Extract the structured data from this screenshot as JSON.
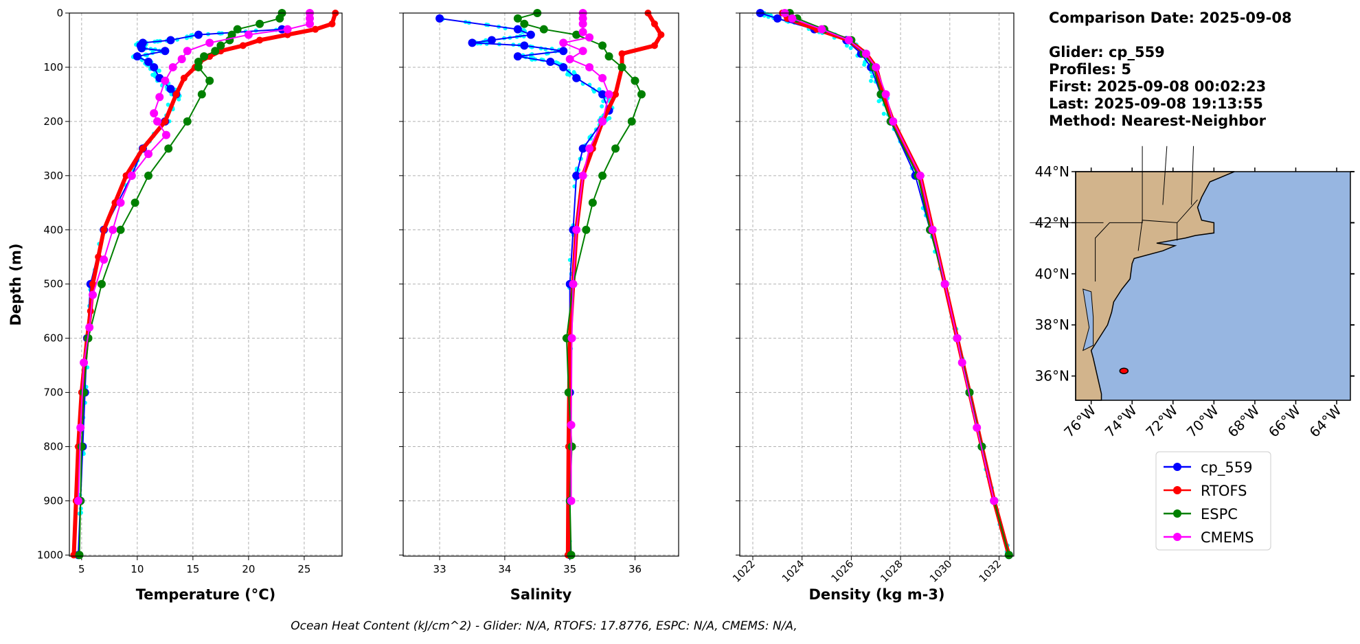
{
  "info": {
    "comparison_date": "Comparison Date: 2025-09-08",
    "glider": "Glider: cp_559",
    "profiles": "Profiles: 5",
    "first": "First: 2025-09-08 00:02:23",
    "last": "Last: 2025-09-08 19:13:55",
    "method": "Method: Nearest-Neighbor"
  },
  "footer": "Ocean Heat Content (kJ/cm^2) - Glider: N/A,  RTOFS: 17.8776,  ESPC: N/A,  CMEMS: N/A,",
  "colors": {
    "cp_559": "#0000ff",
    "RTOFS": "#ff0000",
    "ESPC": "#008000",
    "CMEMS": "#ff00ff",
    "raw": "#00ffff",
    "land": "#d2b48c",
    "ocean": "#97b6e1"
  },
  "chart_data": [
    {
      "type": "line",
      "key": "temp",
      "xlabel": "Temperature (°C)",
      "ylabel": "Depth (m)",
      "xlim": [
        3.9,
        28.4
      ],
      "ylim": [
        1002,
        0
      ],
      "xticks": [
        5,
        10,
        15,
        20,
        25
      ],
      "yticks": [
        0,
        100,
        200,
        300,
        400,
        500,
        600,
        700,
        800,
        900,
        1000
      ],
      "grid": true,
      "series": [
        {
          "name": "cp_559",
          "depth": [
            30,
            40,
            50,
            55,
            60,
            65,
            70,
            80,
            90,
            100,
            120,
            140,
            150,
            200,
            250,
            300,
            400,
            500,
            600,
            700,
            800,
            900,
            1000
          ],
          "values": [
            23,
            15.5,
            13,
            10.5,
            10.3,
            10.4,
            12.5,
            10,
            11,
            11.5,
            12,
            13,
            13.5,
            12.5,
            10.5,
            9.5,
            7,
            5.8,
            5.5,
            5.3,
            5.1,
            4.9,
            4.7
          ]
        },
        {
          "name": "RTOFS",
          "depth": [
            0,
            20,
            30,
            40,
            50,
            60,
            70,
            80,
            90,
            100,
            120,
            150,
            200,
            250,
            300,
            350,
            400,
            450,
            500,
            550,
            600,
            700,
            800,
            900,
            1000
          ],
          "values": [
            27.8,
            27.5,
            26,
            23.5,
            21,
            19.5,
            17.5,
            16.5,
            15.6,
            15.2,
            14.2,
            13.5,
            12.5,
            10.5,
            9,
            8,
            7,
            6.5,
            6,
            5.8,
            5.5,
            5,
            4.7,
            4.5,
            4.3
          ]
        },
        {
          "name": "ESPC",
          "depth": [
            0,
            10,
            20,
            30,
            40,
            50,
            60,
            70,
            80,
            90,
            100,
            125,
            150,
            200,
            250,
            300,
            350,
            400,
            500,
            600,
            700,
            800,
            900,
            1000
          ],
          "values": [
            23,
            22.8,
            21,
            19,
            18.5,
            18.3,
            17.5,
            17,
            16,
            15.5,
            15.5,
            16.5,
            15.8,
            14.5,
            12.8,
            11,
            9.8,
            8.5,
            6.8,
            5.6,
            5.2,
            5,
            4.9,
            4.8
          ]
        },
        {
          "name": "CMEMS",
          "depth": [
            0,
            10,
            20,
            30,
            40,
            55,
            70,
            85,
            100,
            125,
            155,
            185,
            200,
            225,
            260,
            300,
            350,
            400,
            455,
            520,
            580,
            645,
            765,
            900
          ],
          "values": [
            25.5,
            25.5,
            25.5,
            23.5,
            20,
            16.5,
            14.5,
            14,
            13.2,
            12.5,
            12,
            11.5,
            11.8,
            12.6,
            11,
            9.5,
            8.5,
            7.8,
            7,
            6,
            5.7,
            5.2,
            4.9,
            4.7
          ]
        }
      ]
    },
    {
      "type": "line",
      "key": "sal",
      "xlabel": "Salinity",
      "ylabel": "",
      "xlim": [
        32.44,
        36.67
      ],
      "ylim": [
        1002,
        0
      ],
      "xticks": [
        33,
        34,
        35,
        36
      ],
      "yticks": [
        0,
        100,
        200,
        300,
        400,
        500,
        600,
        700,
        800,
        900,
        1000
      ],
      "grid": true,
      "series": [
        {
          "name": "cp_559",
          "depth": [
            10,
            30,
            40,
            50,
            55,
            60,
            70,
            80,
            90,
            100,
            120,
            150,
            180,
            200,
            250,
            300,
            400,
            500,
            700,
            1000
          ],
          "values": [
            33,
            34.2,
            34.4,
            33.8,
            33.5,
            34.3,
            34.9,
            34.2,
            34.7,
            34.9,
            35.1,
            35.5,
            35.6,
            35.5,
            35.2,
            35.1,
            35.05,
            35,
            35,
            35
          ]
        },
        {
          "name": "RTOFS",
          "depth": [
            0,
            20,
            40,
            60,
            75,
            100,
            150,
            200,
            250,
            300,
            400,
            500,
            600,
            800,
            1000
          ],
          "values": [
            36.2,
            36.3,
            36.4,
            36.3,
            35.8,
            35.8,
            35.7,
            35.5,
            35.35,
            35.2,
            35.1,
            35.05,
            35,
            34.98,
            34.97
          ]
        },
        {
          "name": "ESPC",
          "depth": [
            0,
            10,
            20,
            30,
            40,
            60,
            80,
            100,
            125,
            150,
            200,
            250,
            300,
            350,
            400,
            500,
            600,
            700,
            800,
            900,
            1000
          ],
          "values": [
            34.5,
            34.2,
            34.3,
            34.6,
            35.1,
            35.5,
            35.6,
            35.8,
            36,
            36.1,
            35.95,
            35.7,
            35.5,
            35.35,
            35.25,
            35.05,
            34.95,
            34.98,
            35.03,
            35,
            35.02
          ]
        },
        {
          "name": "CMEMS",
          "depth": [
            0,
            10,
            20,
            35,
            45,
            55,
            70,
            85,
            100,
            120,
            150,
            200,
            250,
            300,
            400,
            500,
            600,
            760,
            900
          ],
          "values": [
            35.2,
            35.2,
            35.2,
            35.2,
            35.3,
            34.9,
            35.2,
            35,
            35.3,
            35.5,
            35.6,
            35.5,
            35.3,
            35.2,
            35.1,
            35.05,
            35.03,
            35.02,
            35.02
          ]
        }
      ]
    },
    {
      "type": "line",
      "key": "dens",
      "xlabel": "Density (kg m-3)",
      "ylabel": "",
      "xlim": [
        1021.47,
        1032.6
      ],
      "ylim": [
        1002,
        0
      ],
      "xticks": [
        1022,
        1024,
        1026,
        1028,
        1030,
        1032
      ],
      "yticks": [
        0,
        100,
        200,
        300,
        400,
        500,
        600,
        700,
        800,
        900,
        1000
      ],
      "grid": true,
      "series": [
        {
          "name": "cp_559",
          "depth": [
            0,
            10,
            30,
            50,
            75,
            100,
            150,
            200,
            300,
            400,
            500,
            600,
            700,
            800,
            900,
            1000
          ],
          "values": [
            1022.3,
            1023,
            1024.5,
            1025.8,
            1026.4,
            1026.8,
            1027.2,
            1027.6,
            1028.6,
            1029.2,
            1029.8,
            1030.3,
            1030.8,
            1031.3,
            1031.8,
            1032.4
          ]
        },
        {
          "name": "RTOFS",
          "depth": [
            0,
            10,
            30,
            50,
            75,
            100,
            150,
            200,
            300,
            400,
            500,
            600,
            700,
            800,
            900,
            1000
          ],
          "values": [
            1023.2,
            1023.4,
            1024.6,
            1025.9,
            1026.6,
            1027,
            1027.3,
            1027.7,
            1028.8,
            1029.3,
            1029.8,
            1030.3,
            1030.8,
            1031.3,
            1031.8,
            1032.4
          ]
        },
        {
          "name": "ESPC",
          "depth": [
            0,
            10,
            30,
            50,
            75,
            100,
            150,
            200,
            300,
            400,
            500,
            600,
            700,
            800,
            900,
            1000
          ],
          "values": [
            1023.5,
            1023.8,
            1024.9,
            1026,
            1026.5,
            1026.9,
            1027.2,
            1027.6,
            1028.7,
            1029.2,
            1029.8,
            1030.3,
            1030.8,
            1031.3,
            1031.8,
            1032.4
          ]
        },
        {
          "name": "CMEMS",
          "depth": [
            0,
            10,
            30,
            50,
            75,
            100,
            150,
            200,
            300,
            400,
            500,
            600,
            645,
            765,
            900
          ],
          "values": [
            1023.3,
            1023.6,
            1024.8,
            1025.9,
            1026.6,
            1027,
            1027.4,
            1027.7,
            1028.8,
            1029.3,
            1029.8,
            1030.3,
            1030.5,
            1031.1,
            1031.8
          ]
        }
      ]
    }
  ],
  "map": {
    "lon_range": [
      -76.76,
      -63.33
    ],
    "lat_range": [
      35.05,
      44
    ],
    "lon_ticks": [
      -76,
      -74,
      -72,
      -70,
      -68,
      -66,
      -64
    ],
    "lat_ticks": [
      36,
      38,
      40,
      42,
      44
    ],
    "lon_labels": [
      "76°W",
      "74°W",
      "72°W",
      "70°W",
      "68°W",
      "66°W",
      "64°W"
    ],
    "lat_labels": [
      "36°N",
      "38°N",
      "40°N",
      "42°N",
      "44°N"
    ],
    "glider_position": [
      -74.4,
      36.2
    ]
  },
  "legend": [
    "cp_559",
    "RTOFS",
    "ESPC",
    "CMEMS"
  ]
}
